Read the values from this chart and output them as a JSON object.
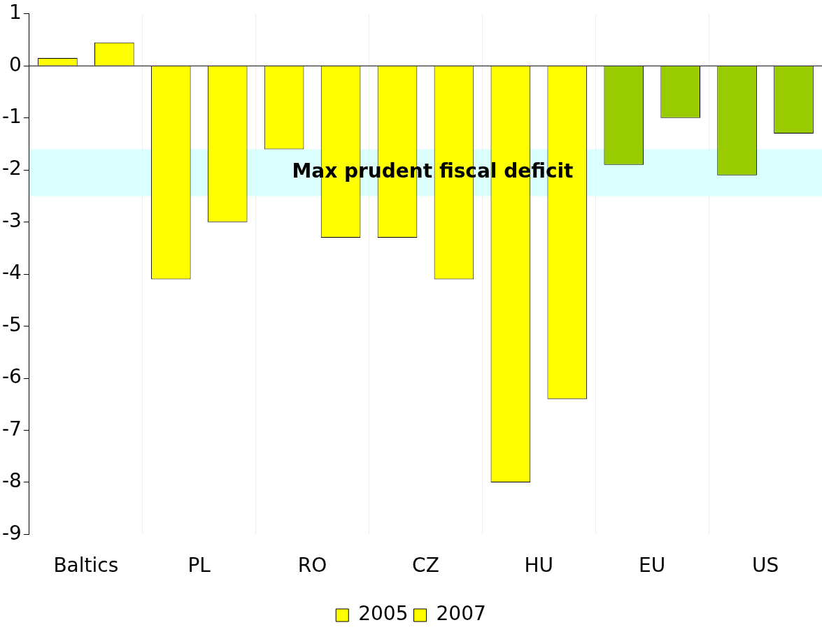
{
  "chart_data": {
    "type": "bar",
    "categories": [
      "Baltics",
      "PL",
      "RO",
      "CZ",
      "HU",
      "EU",
      "US"
    ],
    "series": [
      {
        "name": "2005",
        "color": "#ffff00",
        "colors": [
          "#ffff00",
          "#ffff00",
          "#ffff00",
          "#ffff00",
          "#ffff00",
          "#99cc00",
          "#99cc00"
        ],
        "values": [
          0.15,
          -4.1,
          -1.6,
          -3.3,
          -8.0,
          -1.9,
          -2.1
        ]
      },
      {
        "name": "2007",
        "color": "#ffff00",
        "colors": [
          "#ffff00",
          "#ffff00",
          "#ffff00",
          "#ffff00",
          "#ffff00",
          "#99cc00",
          "#99cc00"
        ],
        "values": [
          0.45,
          -3.0,
          -3.3,
          -4.1,
          -6.4,
          -1.0,
          -1.3
        ]
      }
    ],
    "ylim": [
      -9,
      1
    ],
    "yticks": [
      -9,
      -8,
      -7,
      -6,
      -5,
      -4,
      -3,
      -2,
      -1,
      0,
      1
    ],
    "bands": [
      {
        "axis": "y",
        "from": -1.6,
        "to": -2.5,
        "label": "Max prudent fiscal deficit",
        "color": "#ccffff"
      }
    ],
    "grid": "x",
    "legend": "bottom"
  }
}
